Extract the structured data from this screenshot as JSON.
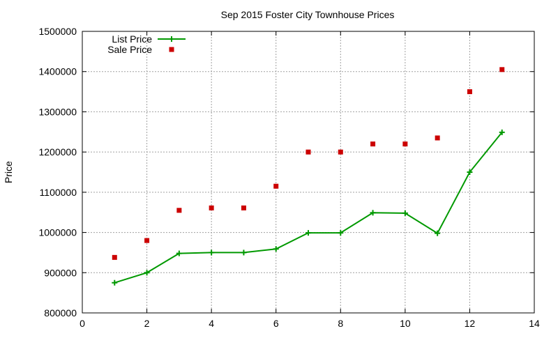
{
  "chart_data": {
    "type": "line",
    "title": "Sep 2015 Foster City Townhouse Prices",
    "xlabel": "",
    "ylabel": "Price",
    "xlim": [
      0,
      14
    ],
    "ylim": [
      800000,
      1500000
    ],
    "xticks": [
      0,
      2,
      4,
      6,
      8,
      10,
      12,
      14
    ],
    "yticks": [
      800000,
      900000,
      1000000,
      1100000,
      1200000,
      1300000,
      1400000,
      1500000
    ],
    "grid": true,
    "legend_position": "top-left",
    "series": [
      {
        "name": "List Price",
        "style": "line-with-plus-markers",
        "color": "#009900",
        "x": [
          1,
          2,
          3,
          4,
          5,
          6,
          7,
          8,
          9,
          10,
          11,
          12,
          13
        ],
        "y": [
          875000,
          900000,
          948000,
          950000,
          950000,
          959000,
          999000,
          999000,
          1049000,
          1048000,
          998000,
          1150000,
          1249000
        ]
      },
      {
        "name": "Sale Price",
        "style": "square-markers",
        "color": "#cc0000",
        "x": [
          1,
          2,
          3,
          4,
          5,
          6,
          7,
          8,
          9,
          10,
          11,
          12,
          13
        ],
        "y": [
          938000,
          980000,
          1055000,
          1061000,
          1061000,
          1115000,
          1200000,
          1200000,
          1220000,
          1220000,
          1235000,
          1350000,
          1405000
        ]
      }
    ]
  }
}
